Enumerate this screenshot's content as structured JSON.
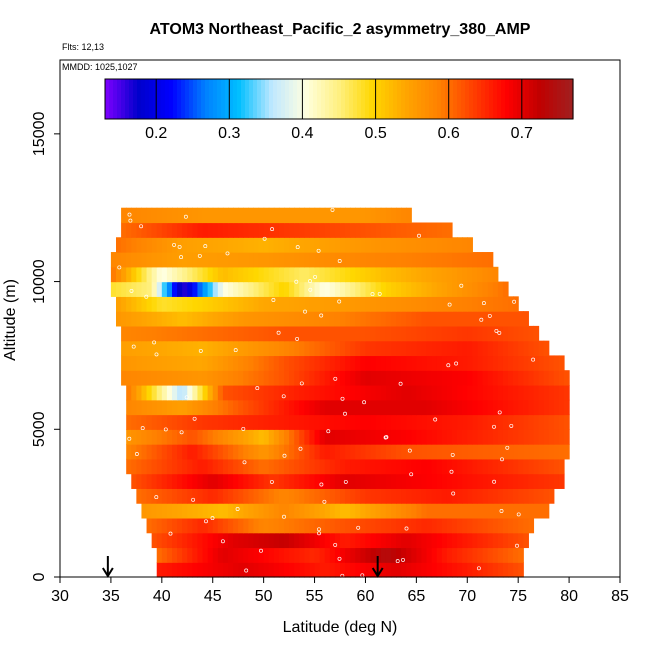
{
  "chart_data": {
    "type": "heatmap",
    "title": "ATOM3 Northeast_Pacific_2 asymmetry_380_AMP",
    "annotations": [
      "Flts: 12,13",
      "MMDD: 1025,1027"
    ],
    "xlabel": "Latitude (deg N)",
    "ylabel": "Altitude (m)",
    "xlim": [
      30,
      85
    ],
    "ylim": [
      0,
      17500
    ],
    "x_ticks": [
      "30",
      "35",
      "40",
      "45",
      "50",
      "55",
      "60",
      "65",
      "70",
      "75",
      "80",
      "85"
    ],
    "y_ticks": [
      "0",
      "5000",
      "10000",
      "15000"
    ],
    "colorbar": {
      "range": [
        0.13,
        0.77
      ],
      "ticks": [
        "0.2",
        "0.3",
        "0.4",
        "0.5",
        "0.6",
        "0.7"
      ],
      "colors": [
        "#7F00FF",
        "#0000CC",
        "#0000FF",
        "#0080FF",
        "#00BFFF",
        "#C0E8FF",
        "#FFFFE0",
        "#FFF080",
        "#FFD700",
        "#FFA500",
        "#FF8000",
        "#FF4000",
        "#FF0000",
        "#C00000",
        "#A02020"
      ]
    },
    "altitude_bins_m": [
      0,
      500,
      1000,
      1500,
      2000,
      2500,
      3000,
      3500,
      4000,
      4500,
      5000,
      5500,
      6000,
      6500,
      7000,
      7500,
      8000,
      8500,
      9000,
      9500,
      10000,
      10500,
      11000,
      11500,
      12000
    ],
    "row_extent_deg": [
      [
        39.5,
        75.5
      ],
      [
        39.5,
        75.5
      ],
      [
        39.0,
        76.0
      ],
      [
        38.5,
        76.5
      ],
      [
        38.0,
        78.0
      ],
      [
        37.5,
        78.5
      ],
      [
        37.0,
        79.5
      ],
      [
        36.5,
        79.5
      ],
      [
        36.5,
        80.0
      ],
      [
        36.5,
        80.0
      ],
      [
        36.5,
        80.0
      ],
      [
        36.5,
        80.0
      ],
      [
        36.5,
        80.0
      ],
      [
        36.0,
        80.0
      ],
      [
        36.0,
        79.5
      ],
      [
        36.0,
        78.0
      ],
      [
        36.0,
        77.0
      ],
      [
        35.5,
        76.0
      ],
      [
        35.5,
        75.0
      ],
      [
        35.0,
        74.0
      ],
      [
        35.0,
        73.0
      ],
      [
        35.0,
        72.5
      ],
      [
        35.5,
        70.5
      ],
      [
        36.0,
        68.5
      ],
      [
        36.0,
        64.5
      ]
    ],
    "row_values": [
      [
        [
          39.5,
          0.66
        ],
        [
          48,
          0.7
        ],
        [
          56,
          0.66
        ],
        [
          63,
          0.7
        ],
        [
          70,
          0.66
        ],
        [
          75.5,
          0.62
        ]
      ],
      [
        [
          39.5,
          0.6
        ],
        [
          46,
          0.7
        ],
        [
          55,
          0.65
        ],
        [
          62,
          0.74
        ],
        [
          68,
          0.66
        ],
        [
          75.5,
          0.6
        ]
      ],
      [
        [
          39,
          0.62
        ],
        [
          47,
          0.7
        ],
        [
          52,
          0.72
        ],
        [
          58,
          0.66
        ],
        [
          64,
          0.7
        ],
        [
          76,
          0.62
        ]
      ],
      [
        [
          38.5,
          0.6
        ],
        [
          44,
          0.65
        ],
        [
          50,
          0.58
        ],
        [
          58,
          0.62
        ],
        [
          66,
          0.65
        ],
        [
          76.5,
          0.6
        ]
      ],
      [
        [
          38,
          0.56
        ],
        [
          46,
          0.52
        ],
        [
          52,
          0.58
        ],
        [
          58,
          0.52
        ],
        [
          66,
          0.6
        ],
        [
          78,
          0.6
        ]
      ],
      [
        [
          37.5,
          0.6
        ],
        [
          45,
          0.65
        ],
        [
          52,
          0.58
        ],
        [
          60,
          0.64
        ],
        [
          68,
          0.66
        ],
        [
          78.5,
          0.62
        ]
      ],
      [
        [
          37,
          0.62
        ],
        [
          45,
          0.7
        ],
        [
          51,
          0.64
        ],
        [
          58,
          0.7
        ],
        [
          66,
          0.68
        ],
        [
          79.5,
          0.64
        ]
      ],
      [
        [
          36.5,
          0.6
        ],
        [
          44,
          0.66
        ],
        [
          50,
          0.6
        ],
        [
          58,
          0.66
        ],
        [
          66,
          0.68
        ],
        [
          79.5,
          0.62
        ]
      ],
      [
        [
          36.5,
          0.58
        ],
        [
          43,
          0.66
        ],
        [
          50,
          0.56
        ],
        [
          56,
          0.66
        ],
        [
          64,
          0.62
        ],
        [
          80,
          0.6
        ]
      ],
      [
        [
          36.5,
          0.56
        ],
        [
          43,
          0.62
        ],
        [
          50,
          0.52
        ],
        [
          56,
          0.7
        ],
        [
          64,
          0.68
        ],
        [
          80,
          0.62
        ]
      ],
      [
        [
          36.5,
          0.6
        ],
        [
          44,
          0.64
        ],
        [
          52,
          0.66
        ],
        [
          60,
          0.68
        ],
        [
          70,
          0.66
        ],
        [
          80,
          0.62
        ]
      ],
      [
        [
          36.5,
          0.58
        ],
        [
          42,
          0.55
        ],
        [
          48,
          0.62
        ],
        [
          56,
          0.7
        ],
        [
          66,
          0.7
        ],
        [
          80,
          0.64
        ]
      ],
      [
        [
          36.5,
          0.6
        ],
        [
          42,
          0.35
        ],
        [
          46,
          0.62
        ],
        [
          54,
          0.66
        ],
        [
          64,
          0.7
        ],
        [
          80,
          0.64
        ]
      ],
      [
        [
          36,
          0.58
        ],
        [
          44,
          0.56
        ],
        [
          52,
          0.62
        ],
        [
          60,
          0.7
        ],
        [
          70,
          0.68
        ],
        [
          80,
          0.62
        ]
      ],
      [
        [
          36,
          0.56
        ],
        [
          44,
          0.54
        ],
        [
          52,
          0.62
        ],
        [
          60,
          0.68
        ],
        [
          70,
          0.66
        ],
        [
          79.5,
          0.62
        ]
      ],
      [
        [
          36,
          0.55
        ],
        [
          44,
          0.53
        ],
        [
          52,
          0.58
        ],
        [
          60,
          0.64
        ],
        [
          70,
          0.66
        ],
        [
          78,
          0.62
        ]
      ],
      [
        [
          36,
          0.58
        ],
        [
          44,
          0.6
        ],
        [
          52,
          0.62
        ],
        [
          60,
          0.62
        ],
        [
          70,
          0.64
        ],
        [
          77,
          0.62
        ]
      ],
      [
        [
          35.5,
          0.56
        ],
        [
          42,
          0.52
        ],
        [
          48,
          0.56
        ],
        [
          56,
          0.58
        ],
        [
          66,
          0.62
        ],
        [
          76,
          0.62
        ]
      ],
      [
        [
          35.5,
          0.55
        ],
        [
          40,
          0.48
        ],
        [
          44,
          0.5
        ],
        [
          50,
          0.54
        ],
        [
          60,
          0.56
        ],
        [
          75,
          0.6
        ]
      ],
      [
        [
          35,
          0.48
        ],
        [
          39,
          0.45
        ],
        [
          42,
          0.15
        ],
        [
          46,
          0.4
        ],
        [
          52,
          0.5
        ],
        [
          56,
          0.4
        ],
        [
          62,
          0.5
        ],
        [
          74,
          0.6
        ]
      ],
      [
        [
          35,
          0.6
        ],
        [
          40,
          0.4
        ],
        [
          46,
          0.52
        ],
        [
          54,
          0.46
        ],
        [
          62,
          0.52
        ],
        [
          73,
          0.58
        ]
      ],
      [
        [
          35,
          0.58
        ],
        [
          42,
          0.55
        ],
        [
          50,
          0.56
        ],
        [
          60,
          0.58
        ],
        [
          72.5,
          0.6
        ]
      ],
      [
        [
          35.5,
          0.6
        ],
        [
          42,
          0.55
        ],
        [
          50,
          0.53
        ],
        [
          60,
          0.56
        ],
        [
          70.5,
          0.58
        ]
      ],
      [
        [
          36,
          0.6
        ],
        [
          44,
          0.66
        ],
        [
          52,
          0.64
        ],
        [
          60,
          0.62
        ],
        [
          68.5,
          0.6
        ]
      ],
      [
        [
          36,
          0.58
        ],
        [
          44,
          0.56
        ],
        [
          52,
          0.56
        ],
        [
          60,
          0.56
        ],
        [
          64.5,
          0.58
        ]
      ]
    ],
    "flight_markers_deg": [
      34.7,
      61.2
    ]
  }
}
